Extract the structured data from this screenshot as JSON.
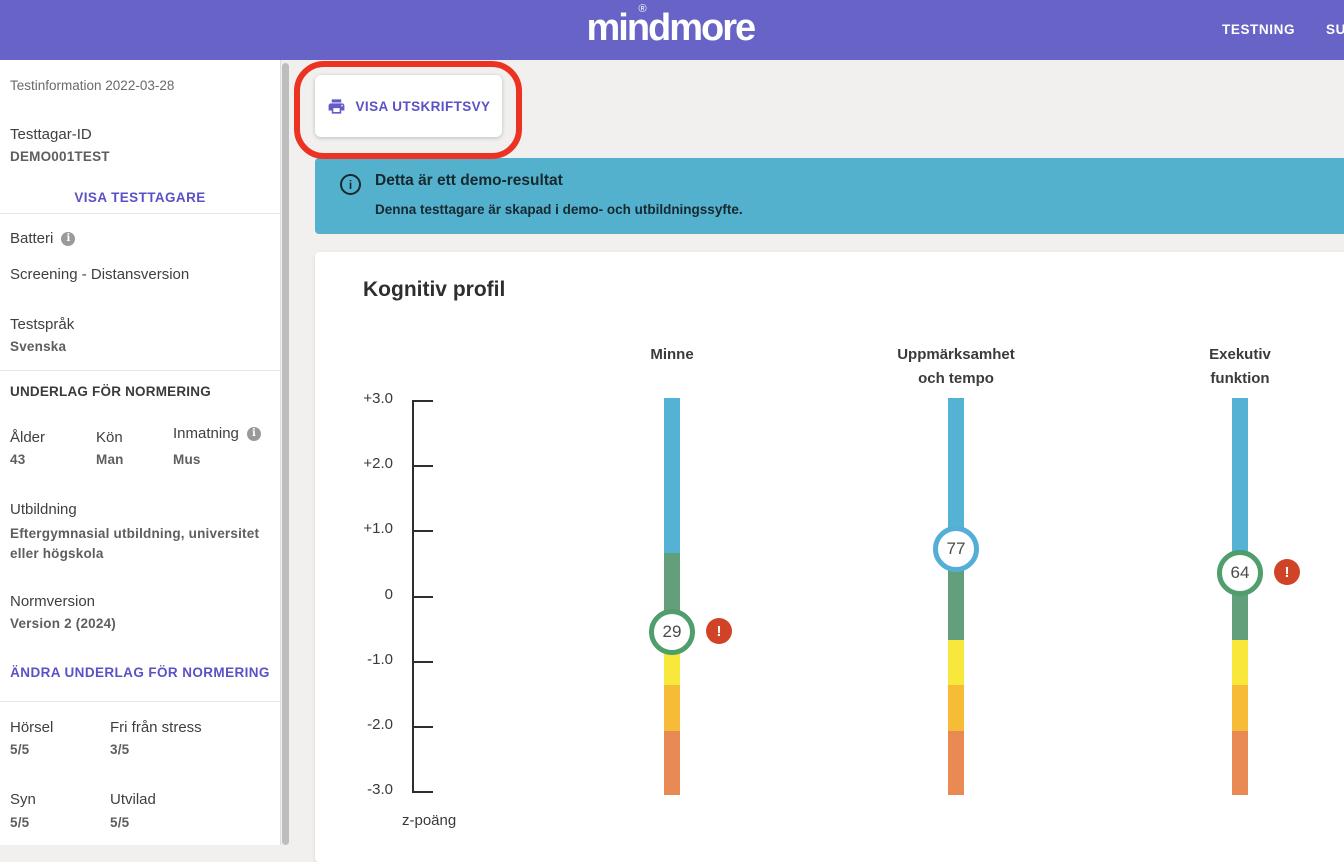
{
  "header": {
    "logo": "mindmore",
    "logo_mark": "®",
    "nav": [
      {
        "label": "TESTNING"
      },
      {
        "label": "SU"
      }
    ]
  },
  "sidebar": {
    "test_information": "Testinformation 2022-03-28",
    "normering_heading": "UNDERLAG FÖR NORMERING",
    "fields": {
      "testtagar_id": {
        "label": "Testtagar-ID",
        "value": "DEMO001TEST"
      },
      "batteri": {
        "label": "Batteri",
        "value": "Screening - Distansversion"
      },
      "testsprak": {
        "label": "Testspråk",
        "value": "Svenska"
      },
      "alder": {
        "label": "Ålder",
        "value": "43"
      },
      "kon": {
        "label": "Kön",
        "value": "Man"
      },
      "inmatning": {
        "label": "Inmatning",
        "value": "Mus"
      },
      "utbildning": {
        "label": "Utbildning",
        "value": "Eftergymnasial utbildning, universitet eller högskola"
      },
      "normversion": {
        "label": "Normversion",
        "value": "Version 2 (2024)"
      },
      "horsel": {
        "label": "Hörsel",
        "value": "5/5"
      },
      "fri_fran_stress": {
        "label": "Fri från stress",
        "value": "3/5"
      },
      "syn": {
        "label": "Syn",
        "value": "5/5"
      },
      "utvilad": {
        "label": "Utvilad",
        "value": "5/5"
      }
    },
    "links": {
      "visa_testtagare": "VISA TESTTAGARE",
      "andra_underlag": "ÄNDRA UNDERLAG FÖR NORMERING"
    }
  },
  "toolbar": {
    "print_button_label": "VISA UTSKRIFTSVY"
  },
  "annotation": {
    "highlight_color": "#EC3323"
  },
  "banner": {
    "title": "Detta är ett demo-resultat",
    "subtitle": "Denna testtagare är skapad i demo- och utbildningssyfte.",
    "background": "#53B1CD"
  },
  "chart_data": {
    "type": "bar",
    "title": "Kognitiv profil",
    "ylabel": "z-poäng",
    "ylim": [
      -3.0,
      3.0
    ],
    "grid": false,
    "legend": false,
    "yticks": [
      {
        "z": 3.0,
        "label": "+3.0"
      },
      {
        "z": 2.0,
        "label": "+2.0"
      },
      {
        "z": 1.0,
        "label": "+1.0"
      },
      {
        "z": 0.0,
        "label": "0"
      },
      {
        "z": -1.0,
        "label": "-1.0"
      },
      {
        "z": -2.0,
        "label": "-2.0"
      },
      {
        "z": -3.0,
        "label": "-3.0"
      }
    ],
    "categories": [
      "Minne",
      "Uppmärksamhet och tempo",
      "Exekutiv funktion"
    ],
    "series": [
      {
        "name": "Minne",
        "label_lines": [
          "Minne"
        ],
        "percentile": 29,
        "z": -0.55,
        "marker_color": "#4F9E6B",
        "warning": true
      },
      {
        "name": "Uppmärksamhet och tempo",
        "label_lines": [
          "Uppmärksamhet",
          "och tempo"
        ],
        "percentile": 77,
        "z": 0.73,
        "marker_color": "#53AFD7",
        "warning": false
      },
      {
        "name": "Exekutiv funktion",
        "label_lines": [
          "Exekutiv",
          "funktion"
        ],
        "percentile": 64,
        "z": 0.36,
        "marker_color": "#4F9E6B",
        "warning": true
      }
    ],
    "zones": [
      {
        "name": "above-average",
        "from": 3.04,
        "to": 0.67,
        "color": "#54B3D5"
      },
      {
        "name": "average",
        "from": 0.67,
        "to": -0.67,
        "color": "#649F7B"
      },
      {
        "name": "low-average",
        "from": -0.67,
        "to": -1.36,
        "color": "#F7E83B"
      },
      {
        "name": "below-average",
        "from": -1.36,
        "to": -2.07,
        "color": "#F6BC38"
      },
      {
        "name": "well-below-average",
        "from": -2.07,
        "to": -3.04,
        "color": "#E98A55"
      }
    ],
    "warning_color": "#D04327"
  }
}
